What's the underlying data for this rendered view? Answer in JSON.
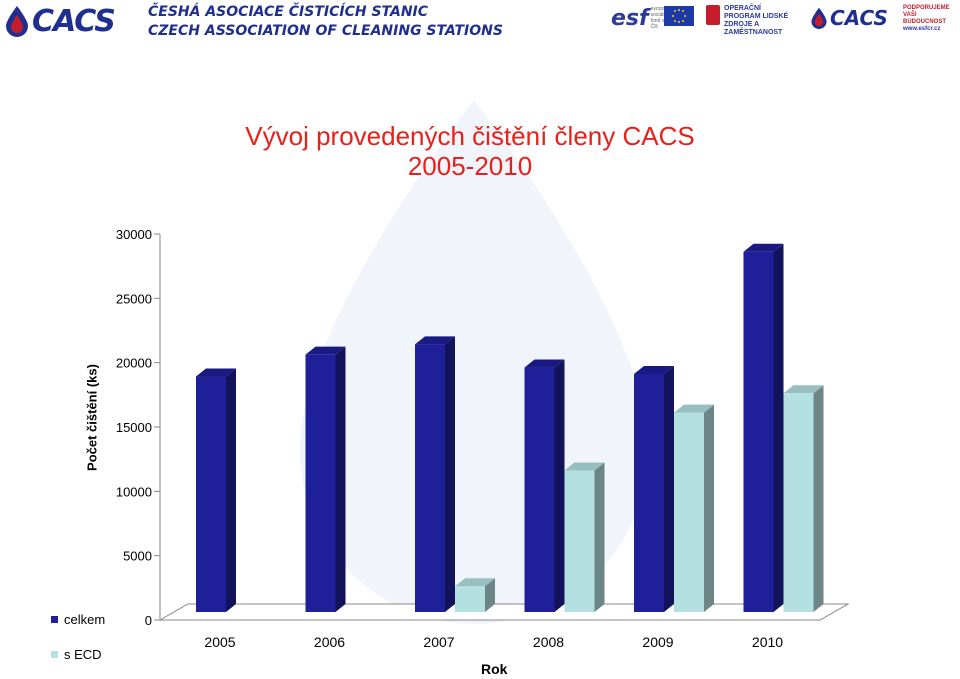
{
  "header": {
    "logo_text": "CACS",
    "assoc_cz": "ČESHÁ ASOCIACE ČISTICÍCH STANIC",
    "assoc_en": "CZECH ASSOCIATION OF CLEANING STATIONS",
    "esf_text": "esf",
    "esf_small": "evropský sociální fond v ČR",
    "op_text": "OPERAČNÍ PROGRAM LIDSKÉ ZDROJE A ZAMĚSTNANOST",
    "logo_right_text": "CACS",
    "support_line1": "PODPORUJEME",
    "support_line2": "VAŠI BUDOUCNOST",
    "support_url": "www.esfcr.cz"
  },
  "colors": {
    "celkem": "#1f1f9a",
    "sECD": "#b4e0e2",
    "title": "#e8201a",
    "brand": "#1f2f8f"
  },
  "chart_data": {
    "type": "bar",
    "title_line1": "Vývoj provedených čištění členy CACS",
    "title_line2": "2005-2010",
    "xlabel": "Rok",
    "ylabel": "Počet čištění (ks)",
    "ylim": [
      0,
      30000
    ],
    "yticks": [
      "0",
      "5000",
      "10000",
      "15000",
      "20000",
      "25000",
      "30000"
    ],
    "categories": [
      "2005",
      "2006",
      "2007",
      "2008",
      "2009",
      "2010"
    ],
    "series": [
      {
        "name": "celkem",
        "values": [
          18300,
          20000,
          20800,
          19000,
          18500,
          28000
        ]
      },
      {
        "name": "s ECD",
        "values": [
          null,
          null,
          2000,
          11000,
          15500,
          17000
        ]
      }
    ],
    "legend": "bottom-left",
    "style": "3d-bars"
  }
}
